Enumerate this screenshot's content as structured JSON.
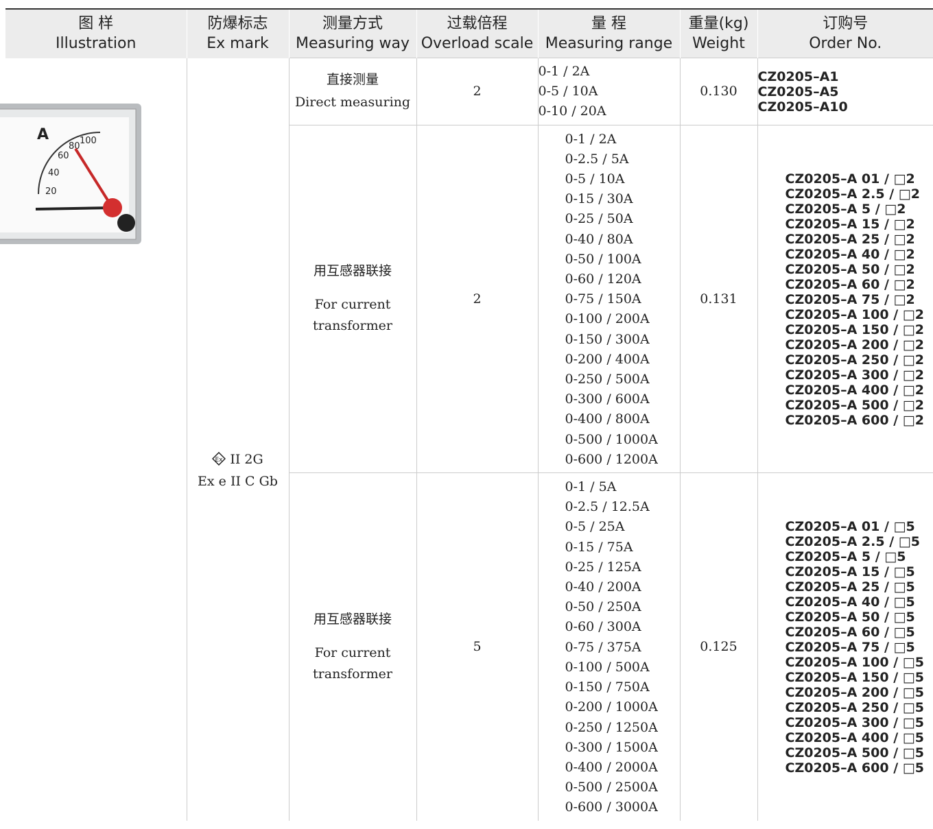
{
  "header": {
    "columns": [
      {
        "zh": "图 样",
        "en": "Illustration"
      },
      {
        "zh": "防爆标志",
        "en": "Ex mark"
      },
      {
        "zh": "测量方式",
        "en": "Measuring way"
      },
      {
        "zh": "过载倍程",
        "en": "Overload scale"
      },
      {
        "zh": "量 程",
        "en": "Measuring range"
      },
      {
        "zh": "重量(kg)",
        "en": "Weight"
      },
      {
        "zh": "订购号",
        "en": "Order No."
      }
    ]
  },
  "ex_mark": {
    "line1": "II 2G",
    "line2": "Ex e II C Gb"
  },
  "groups": [
    {
      "method_zh": "直接测量",
      "method_en": [
        "Direct measuring"
      ],
      "overload": "2",
      "weight": "0.130",
      "ranges": [
        "0-1 / 2A",
        "0-5 / 10A",
        "0-10 / 20A"
      ],
      "orders": [
        "CZ0205–A1",
        "CZ0205–A5",
        "CZ0205–A10"
      ]
    },
    {
      "method_zh": "用互感器联接",
      "method_en": [
        "For current",
        "transformer"
      ],
      "overload": "2",
      "weight": "0.131",
      "ranges": [
        "0-1 / 2A",
        "0-2.5 / 5A",
        "0-5 / 10A",
        "0-15 / 30A",
        "0-25 / 50A",
        "0-40 / 80A",
        "0-50 / 100A",
        "0-60 / 120A",
        "0-75 / 150A",
        "0-100 / 200A",
        "0-150 / 300A",
        "0-200 / 400A",
        "0-250 / 500A",
        "0-300 / 600A",
        "0-400 / 800A",
        "0-500 / 1000A",
        "0-600 / 1200A"
      ],
      "orders": [
        "CZ0205–A 01 / □2",
        "CZ0205–A 2.5 / □2",
        "CZ0205–A 5 / □2",
        "CZ0205–A 15 / □2",
        "CZ0205–A 25 / □2",
        "CZ0205–A 40 / □2",
        "CZ0205–A 50 / □2",
        "CZ0205–A 60 / □2",
        "CZ0205–A 75 / □2",
        "CZ0205–A 100 / □2",
        "CZ0205–A 150 / □2",
        "CZ0205–A 200 / □2",
        "CZ0205–A 250 / □2",
        "CZ0205–A 300 / □2",
        "CZ0205–A 400 / □2",
        "CZ0205–A 500 / □2",
        "CZ0205–A 600 / □2"
      ]
    },
    {
      "method_zh": "用互感器联接",
      "method_en": [
        "For current",
        "transformer"
      ],
      "overload": "5",
      "weight": "0.125",
      "ranges": [
        "0-1 / 5A",
        "0-2.5 / 12.5A",
        "0-5 / 25A",
        "0-15 / 75A",
        "0-25 / 125A",
        "0-40 / 200A",
        "0-50 / 250A",
        "0-60 / 300A",
        "0-75 / 375A",
        "0-100 / 500A",
        "0-150 / 750A",
        "0-200 / 1000A",
        "0-250 / 1250A",
        "0-300 / 1500A",
        "0-400 / 2000A",
        "0-500 / 2500A",
        "0-600 / 3000A"
      ],
      "orders": [
        "CZ0205–A 01 / □5",
        "CZ0205–A 2.5 / □5",
        "CZ0205–A 5 / □5",
        "CZ0205–A 15 / □5",
        "CZ0205–A 25 / □5",
        "CZ0205–A 40 / □5",
        "CZ0205–A 50 / □5",
        "CZ0205–A 60 / □5",
        "CZ0205–A 75 / □5",
        "CZ0205–A 100 / □5",
        "CZ0205–A 150 / □5",
        "CZ0205–A 200 / □5",
        "CZ0205–A 250 / □5",
        "CZ0205–A 300 / □5",
        "CZ0205–A 400 / □5",
        "CZ0205–A 500 / □5",
        "CZ0205–A 600 / □5"
      ]
    }
  ]
}
